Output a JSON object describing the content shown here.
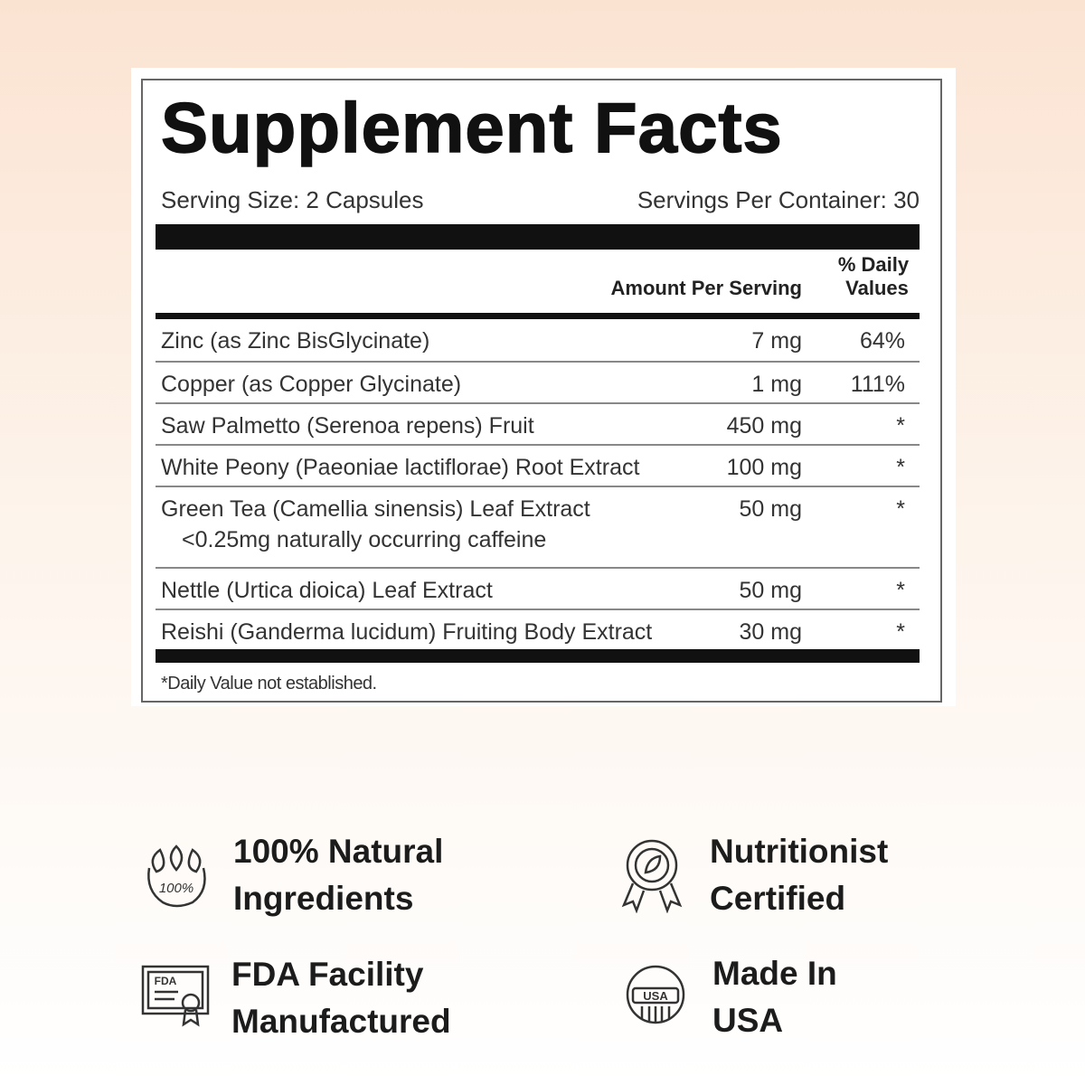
{
  "facts": {
    "title": "Supplement Facts",
    "serving_size": "Serving Size: 2 Capsules",
    "servings_per_container": "Servings Per Container: 30",
    "header_amount": "Amount Per Serving",
    "header_dv": [
      "% Daily",
      "Values"
    ],
    "rows": [
      {
        "name": "Zinc (as Zinc BisGlycinate)",
        "amount": "7 mg",
        "dv": "64%"
      },
      {
        "name": "Copper (as Copper Glycinate)",
        "amount": "1 mg",
        "dv": "111%"
      },
      {
        "name": "Saw Palmetto (Serenoa repens) Fruit",
        "amount": "450 mg",
        "dv": "*"
      },
      {
        "name": "White Peony (Paeoniae lactiflorae) Root Extract",
        "amount": "100 mg",
        "dv": "*"
      },
      {
        "name": "Green Tea (Camellia sinensis) Leaf Extract",
        "sub": "<0.25mg naturally occurring caffeine",
        "amount": "50 mg",
        "dv": "*"
      },
      {
        "name": "Nettle (Urtica dioica) Leaf Extract",
        "amount": "50 mg",
        "dv": "*"
      },
      {
        "name": "Reishi (Ganderma lucidum) Fruiting Body Extract",
        "amount": "30 mg",
        "dv": "*"
      }
    ],
    "footnote": "*Daily Value not established."
  },
  "badges": [
    {
      "lines": [
        "100% Natural",
        "Ingredients"
      ],
      "icon_text": "100%"
    },
    {
      "lines": [
        "Nutritionist",
        "Certified"
      ]
    },
    {
      "lines": [
        "FDA Facility",
        "Manufactured"
      ],
      "icon_text": "FDA"
    },
    {
      "lines": [
        "Made In",
        "USA"
      ],
      "icon_text": "USA"
    }
  ]
}
